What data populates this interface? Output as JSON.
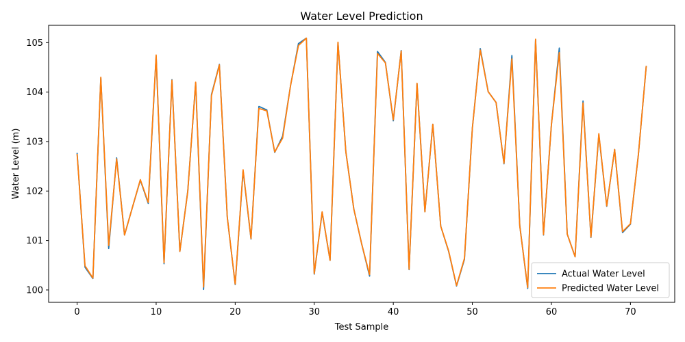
{
  "chart_data": {
    "type": "line",
    "title": "Water Level Prediction",
    "xlabel": "Test Sample",
    "ylabel": "Water Level (m)",
    "xlim": [
      -3.6,
      75.6
    ],
    "ylim": [
      99.75,
      105.35
    ],
    "xticks": [
      0,
      10,
      20,
      30,
      40,
      50,
      60,
      70
    ],
    "yticks": [
      100,
      101,
      102,
      103,
      104,
      105
    ],
    "grid": false,
    "legend_position": "lower right",
    "x": [
      0,
      1,
      2,
      3,
      4,
      5,
      6,
      7,
      8,
      9,
      10,
      11,
      12,
      13,
      14,
      15,
      16,
      17,
      18,
      19,
      20,
      21,
      22,
      23,
      24,
      25,
      26,
      27,
      28,
      29,
      30,
      31,
      32,
      33,
      34,
      35,
      36,
      37,
      38,
      39,
      40,
      41,
      42,
      43,
      44,
      45,
      46,
      47,
      48,
      49,
      50,
      51,
      52,
      53,
      54,
      55,
      56,
      57,
      58,
      59,
      60,
      61,
      62,
      63,
      64,
      65,
      66,
      67,
      68,
      69,
      70,
      71,
      72
    ],
    "series": [
      {
        "name": "Actual Water Level",
        "color": "#1f77b4",
        "values": [
          102.77,
          100.46,
          100.23,
          104.29,
          100.84,
          102.67,
          101.11,
          101.67,
          102.22,
          101.75,
          104.73,
          100.53,
          104.25,
          100.78,
          102.0,
          104.19,
          100.01,
          103.95,
          104.56,
          101.47,
          100.11,
          102.41,
          101.03,
          103.71,
          103.64,
          102.78,
          103.11,
          104.13,
          104.98,
          105.09,
          100.32,
          101.57,
          100.6,
          105.0,
          102.79,
          101.64,
          100.93,
          100.28,
          104.82,
          104.6,
          103.42,
          104.84,
          100.41,
          104.17,
          101.58,
          103.35,
          101.29,
          100.78,
          100.08,
          100.62,
          103.27,
          104.88,
          104.01,
          103.79,
          102.55,
          104.74,
          101.3,
          100.03,
          105.06,
          101.11,
          103.34,
          104.89,
          101.13,
          100.67,
          103.82,
          101.06,
          103.14,
          101.69,
          102.84,
          101.16,
          101.33,
          102.73,
          104.53
        ]
      },
      {
        "name": "Predicted Water Level",
        "color": "#ff7f0e",
        "values": [
          102.75,
          100.49,
          100.24,
          104.3,
          100.9,
          102.65,
          101.11,
          101.67,
          102.23,
          101.77,
          104.75,
          100.55,
          104.24,
          100.78,
          101.99,
          104.2,
          100.06,
          103.93,
          104.55,
          101.47,
          100.12,
          102.43,
          101.04,
          103.67,
          103.62,
          102.79,
          103.07,
          104.13,
          104.94,
          105.09,
          100.33,
          101.58,
          100.6,
          105.01,
          102.79,
          101.64,
          100.93,
          100.31,
          104.78,
          104.59,
          103.44,
          104.83,
          100.42,
          104.18,
          101.58,
          103.35,
          101.29,
          100.79,
          100.09,
          100.64,
          103.27,
          104.85,
          104.01,
          103.79,
          102.56,
          104.67,
          101.29,
          100.05,
          105.07,
          101.12,
          103.34,
          104.8,
          101.13,
          100.67,
          103.78,
          101.07,
          103.16,
          101.7,
          102.84,
          101.18,
          101.34,
          102.73,
          104.53
        ]
      }
    ]
  }
}
